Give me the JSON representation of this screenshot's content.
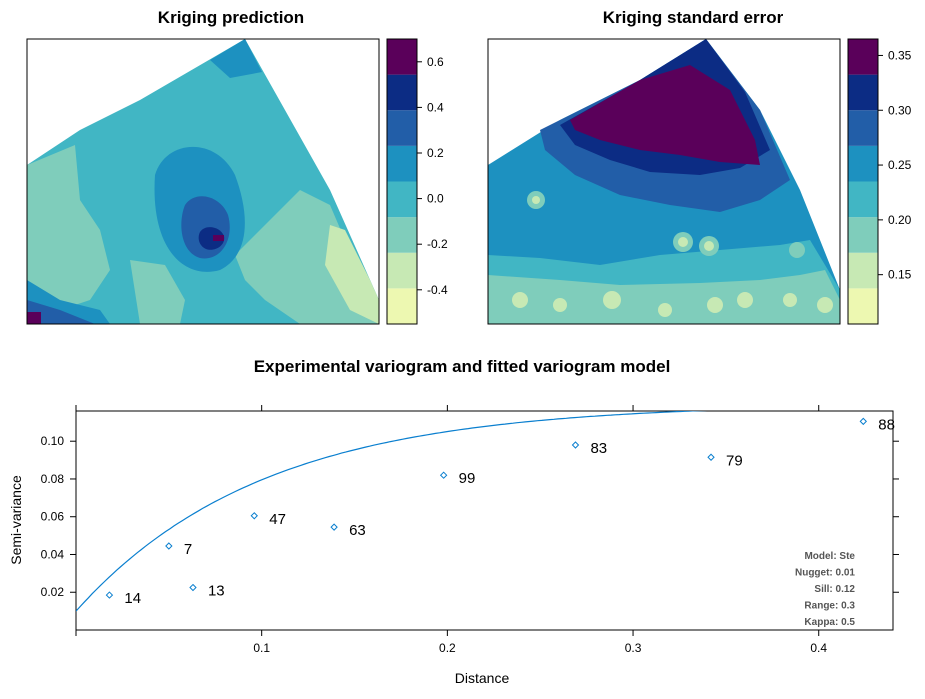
{
  "palette": [
    "#edf8b1",
    "#c7e9b4",
    "#7fcdbb",
    "#41b6c4",
    "#1d91c0",
    "#225ea8",
    "#0c2c84",
    "#5a005a"
  ],
  "line_color": "#0a7fcf",
  "chart_data": [
    {
      "type": "heatmap",
      "title": "Kriging prediction",
      "legend_ticks": [
        "0.6",
        "0.4",
        "0.2",
        "0.0",
        "-0.2",
        "-0.4"
      ],
      "range": [
        -0.55,
        0.7
      ]
    },
    {
      "type": "heatmap",
      "title": "Kriging standard error",
      "legend_ticks": [
        "0.35",
        "0.30",
        "0.25",
        "0.20",
        "0.15"
      ],
      "range": [
        0.105,
        0.365
      ]
    },
    {
      "type": "scatter",
      "title": "Experimental variogram and fitted variogram model",
      "xlabel": "Distance",
      "ylabel": "Semi-variance",
      "xlim": [
        0,
        0.44
      ],
      "ylim": [
        0,
        0.116
      ],
      "x_ticks": [
        "0.1",
        "0.2",
        "0.3",
        "0.4"
      ],
      "y_ticks": [
        "0.02",
        "0.04",
        "0.06",
        "0.08",
        "0.10"
      ],
      "points": [
        {
          "x": 0.018,
          "y": 0.0185,
          "n": "14"
        },
        {
          "x": 0.05,
          "y": 0.0445,
          "n": "7"
        },
        {
          "x": 0.063,
          "y": 0.0225,
          "n": "13"
        },
        {
          "x": 0.096,
          "y": 0.0605,
          "n": "47"
        },
        {
          "x": 0.139,
          "y": 0.0545,
          "n": "63"
        },
        {
          "x": 0.198,
          "y": 0.082,
          "n": "99"
        },
        {
          "x": 0.269,
          "y": 0.098,
          "n": "83"
        },
        {
          "x": 0.342,
          "y": 0.0915,
          "n": "79"
        },
        {
          "x": 0.424,
          "y": 0.1105,
          "n": "88"
        }
      ],
      "model": {
        "type": "Ste",
        "nugget": 0.01,
        "sill": 0.12,
        "range": 0.3,
        "kappa": 0.5
      },
      "annotations": [
        "Model: Ste",
        "Nugget: 0.01",
        "Sill: 0.12",
        "Range: 0.3",
        "Kappa: 0.5"
      ]
    }
  ]
}
